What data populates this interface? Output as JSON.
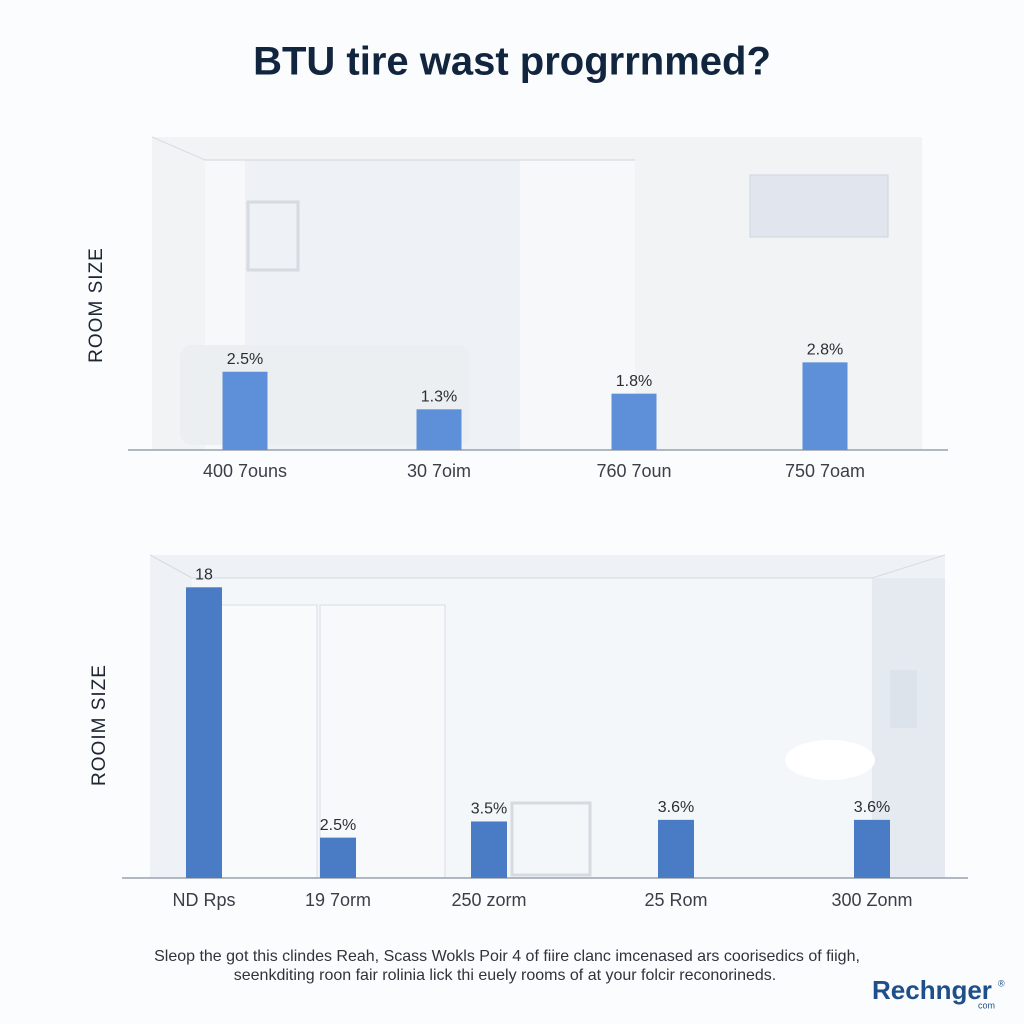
{
  "title": "BTU tire wast progrrnmed?",
  "chart_data": [
    {
      "type": "bar",
      "ylabel": "ROOM SIZE",
      "color": "#5d90d8",
      "categories": [
        "400 7ouns",
        "30 7oim",
        "760 7oun",
        "750 7oam"
      ],
      "values": [
        2.5,
        1.3,
        1.8,
        2.8
      ],
      "value_labels": [
        "2.5%",
        "1.3%",
        "1.8%",
        "2.8%"
      ],
      "ylim": [
        0,
        10
      ]
    },
    {
      "type": "bar",
      "ylabel": "ROOIM SIZE",
      "color": "#4a7cc6",
      "categories": [
        "ND Rps",
        "19 7orm",
        "250 zorm",
        "25 Rom",
        "300 Zonm"
      ],
      "values": [
        18,
        2.5,
        3.5,
        3.6,
        3.6
      ],
      "value_labels": [
        "18",
        "2.5%",
        "3.5%",
        "3.6%",
        "3.6%"
      ],
      "ylim": [
        0,
        20
      ]
    }
  ],
  "footer": [
    "Sleop the got this clindes Reah, Scass Wokls Poir 4  of fiire clanc imcenased ars coorisedics of fiigh,",
    "seenkditing roon fair rolinia lick thi euely rooms of at your folcir reconorineds."
  ],
  "brand": {
    "name": "Rechnger",
    "mark": "®",
    "domain": "com"
  }
}
